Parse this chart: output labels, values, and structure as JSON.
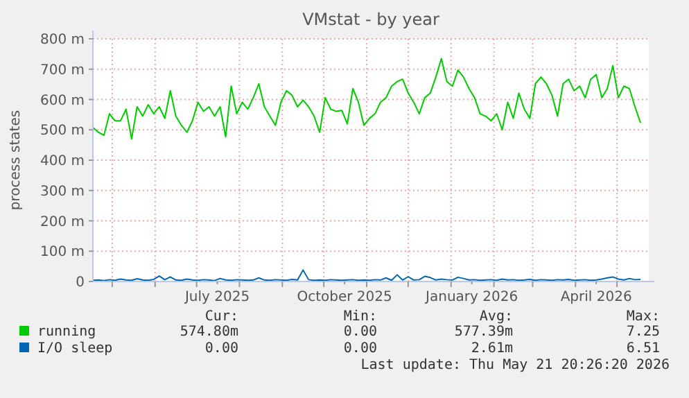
{
  "chart_data": {
    "type": "line",
    "title": "VMstat - by year",
    "ylabel": "process states",
    "x": [
      "2025-04-17",
      "2025-04-21",
      "2025-04-25",
      "2025-04-29",
      "2025-05-03",
      "2025-05-07",
      "2025-05-11",
      "2025-05-15",
      "2025-05-19",
      "2025-05-23",
      "2025-05-27",
      "2025-05-31",
      "2025-06-04",
      "2025-06-08",
      "2025-06-12",
      "2025-06-16",
      "2025-06-20",
      "2025-06-24",
      "2025-06-28",
      "2025-07-02",
      "2025-07-06",
      "2025-07-10",
      "2025-07-14",
      "2025-07-18",
      "2025-07-22",
      "2025-07-26",
      "2025-07-30",
      "2025-08-03",
      "2025-08-07",
      "2025-08-11",
      "2025-08-15",
      "2025-08-19",
      "2025-08-23",
      "2025-08-27",
      "2025-08-31",
      "2025-09-04",
      "2025-09-08",
      "2025-09-12",
      "2025-09-16",
      "2025-09-20",
      "2025-09-24",
      "2025-09-28",
      "2025-10-02",
      "2025-10-06",
      "2025-10-10",
      "2025-10-14",
      "2025-10-18",
      "2025-10-22",
      "2025-10-26",
      "2025-10-30",
      "2025-11-03",
      "2025-11-07",
      "2025-11-11",
      "2025-11-15",
      "2025-11-19",
      "2025-11-23",
      "2025-11-27",
      "2025-12-01",
      "2025-12-05",
      "2025-12-09",
      "2025-12-13",
      "2025-12-17",
      "2025-12-21",
      "2025-12-25",
      "2025-12-29",
      "2026-01-02",
      "2026-01-06",
      "2026-01-10",
      "2026-01-14",
      "2026-01-18",
      "2026-01-22",
      "2026-01-26",
      "2026-01-30",
      "2026-02-03",
      "2026-02-07",
      "2026-02-11",
      "2026-02-15",
      "2026-02-19",
      "2026-02-23",
      "2026-02-27",
      "2026-03-03",
      "2026-03-07",
      "2026-03-11",
      "2026-03-15",
      "2026-03-19",
      "2026-03-23",
      "2026-03-27",
      "2026-03-31",
      "2026-04-04",
      "2026-04-08",
      "2026-04-12",
      "2026-04-16",
      "2026-04-20",
      "2026-04-24",
      "2026-04-28",
      "2026-05-02",
      "2026-05-06",
      "2026-05-10",
      "2026-05-14",
      "2026-05-18"
    ],
    "series": [
      {
        "name": "running",
        "color": "#00cc00",
        "values": [
          508,
          492,
          482,
          553,
          530,
          530,
          568,
          470,
          576,
          545,
          583,
          553,
          576,
          538,
          629,
          545,
          515,
          492,
          530,
          591,
          561,
          576,
          545,
          576,
          477,
          644,
          553,
          591,
          568,
          606,
          652,
          576,
          545,
          515,
          591,
          629,
          614,
          576,
          598,
          576,
          545,
          492,
          606,
          568,
          561,
          564,
          520,
          636,
          591,
          515,
          538,
          553,
          591,
          606,
          644,
          659,
          667,
          621,
          591,
          553,
          606,
          621,
          674,
          735,
          659,
          644,
          697,
          674,
          636,
          606,
          553,
          545,
          530,
          553,
          500,
          591,
          538,
          621,
          568,
          538,
          652,
          674,
          652,
          614,
          545,
          652,
          667,
          629,
          644,
          606,
          667,
          682,
          606,
          636,
          712,
          606,
          644,
          636,
          576,
          523
        ]
      },
      {
        "name": "I/O sleep",
        "color": "#0066b3",
        "values": [
          4,
          5,
          3,
          6,
          4,
          8,
          5,
          4,
          9,
          5,
          4,
          7,
          18,
          6,
          15,
          5,
          4,
          8,
          5,
          4,
          6,
          5,
          3,
          10,
          5,
          4,
          6,
          5,
          4,
          5,
          12,
          5,
          4,
          6,
          5,
          4,
          7,
          5,
          38,
          6,
          4,
          5,
          4,
          6,
          5,
          4,
          5,
          6,
          4,
          5,
          4,
          6,
          5,
          12,
          4,
          22,
          5,
          16,
          5,
          6,
          17,
          13,
          5,
          8,
          6,
          5,
          14,
          10,
          5,
          6,
          4,
          5,
          6,
          4,
          8,
          5,
          6,
          4,
          5,
          7,
          4,
          6,
          5,
          4,
          6,
          5,
          7,
          4,
          5,
          6,
          4,
          5,
          8,
          12,
          15,
          8,
          5,
          10,
          6,
          7
        ]
      }
    ],
    "xlim": [
      "2025-04-17",
      "2026-05-24"
    ],
    "xticks": [
      {
        "value": "2025-05-01",
        "label": null
      },
      {
        "value": "2025-06-01",
        "label": null
      },
      {
        "value": "2025-07-01",
        "label": null
      },
      {
        "value": "2025-07-16",
        "label": "July 2025"
      },
      {
        "value": "2025-08-01",
        "label": null
      },
      {
        "value": "2025-09-01",
        "label": null
      },
      {
        "value": "2025-10-01",
        "label": null
      },
      {
        "value": "2025-10-16",
        "label": "October 2025"
      },
      {
        "value": "2025-11-01",
        "label": null
      },
      {
        "value": "2025-12-01",
        "label": null
      },
      {
        "value": "2026-01-01",
        "label": null
      },
      {
        "value": "2026-01-16",
        "label": "January 2026"
      },
      {
        "value": "2026-02-01",
        "label": null
      },
      {
        "value": "2026-03-01",
        "label": null
      },
      {
        "value": "2026-04-01",
        "label": null
      },
      {
        "value": "2026-04-16",
        "label": "April 2026"
      },
      {
        "value": "2026-05-01",
        "label": null
      }
    ],
    "ylim": [
      0,
      800
    ],
    "yticks": [
      0,
      {
        "value": 100,
        "label": "100 m"
      },
      {
        "value": 200,
        "label": "200 m"
      },
      {
        "value": 300,
        "label": "300 m"
      },
      {
        "value": 400,
        "label": "400 m"
      },
      {
        "value": 500,
        "label": "500 m"
      },
      {
        "value": 600,
        "label": "600 m"
      },
      {
        "value": 700,
        "label": "700 m"
      },
      {
        "value": 800,
        "label": "800 m"
      }
    ],
    "grid": true,
    "legend": "bottom",
    "annotations": [
      "Cur:",
      "Min:",
      "Avg:",
      "Max:",
      "574.80m",
      "0.00",
      "577.39m",
      "7.25",
      "0.00",
      "0.00",
      "2.61m",
      "6.51",
      "Last update: Thu May 21 20:26:20 2026"
    ]
  }
}
